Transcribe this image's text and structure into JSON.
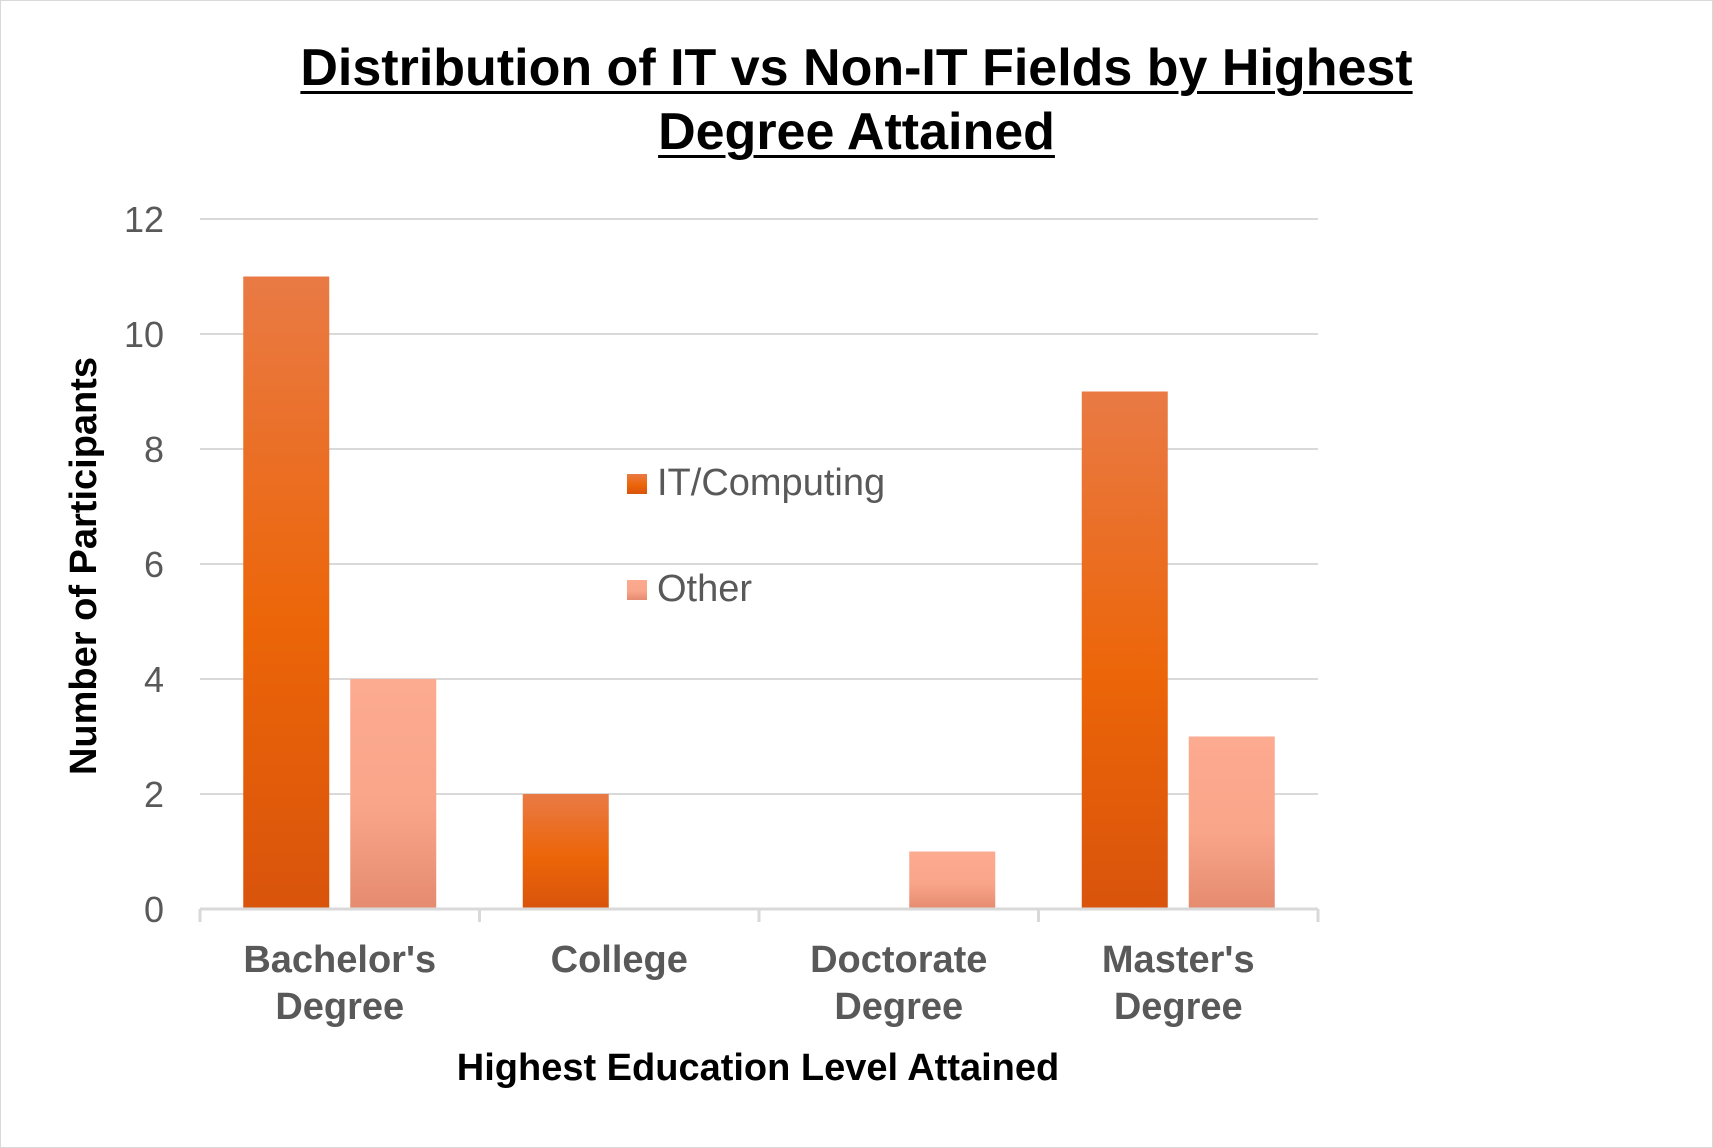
{
  "chart_data": {
    "type": "bar",
    "title_line1": "Distribution of IT vs Non-IT Fields by Highest",
    "title_line2": "Degree Attained",
    "xlabel": "Highest Education Level Attained",
    "ylabel": "Number of Participants",
    "categories": [
      [
        "Bachelor's",
        "Degree"
      ],
      [
        "College"
      ],
      [
        "Doctorate",
        "Degree"
      ],
      [
        "Master's",
        "Degree"
      ]
    ],
    "series": [
      {
        "name": "IT/Computing",
        "values": [
          11,
          2,
          0,
          9
        ],
        "color_top": "#e97a45",
        "color_mid": "#ec6508",
        "color_bottom": "#d9540c"
      },
      {
        "name": "Other",
        "values": [
          4,
          0,
          1,
          3
        ],
        "color_top": "#fcaa90",
        "color_mid": "#f9a58a",
        "color_bottom": "#e58b6f"
      }
    ],
    "ylim": [
      0,
      12
    ],
    "yticks": [
      "0",
      "2",
      "4",
      "6",
      "8",
      "10",
      "12"
    ],
    "grid": true,
    "legend_position": "center"
  }
}
